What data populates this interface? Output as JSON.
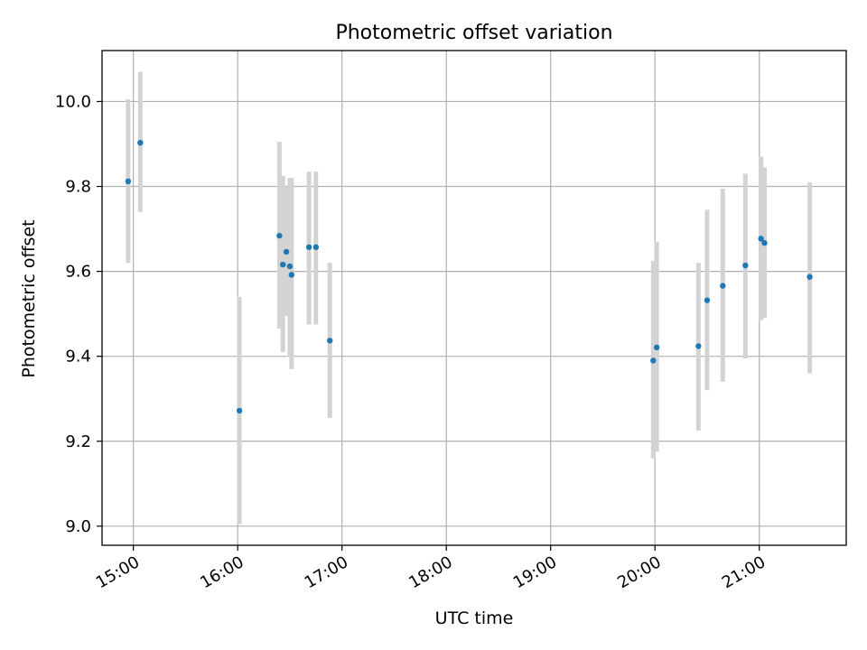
{
  "chart_data": {
    "type": "scatter",
    "title": "Photometric offset variation",
    "xlabel": "UTC time",
    "ylabel": "Photometric offset",
    "x_ticks": [
      "15:00",
      "16:00",
      "17:00",
      "18:00",
      "19:00",
      "20:00",
      "21:00"
    ],
    "y_ticks": [
      "9.0",
      "9.2",
      "9.4",
      "9.6",
      "9.8",
      "10.0"
    ],
    "xlim": [
      "14:42",
      "21:50"
    ],
    "ylim": [
      8.955,
      10.12
    ],
    "grid": true,
    "legend": "none",
    "colors": {
      "points": "#1f77b4",
      "error_bars": "#d3d3d3",
      "grid": "#b0b0b0"
    },
    "points": [
      {
        "time": "14:57",
        "offset": 9.812,
        "low": 9.62,
        "high": 10.005
      },
      {
        "time": "15:04",
        "offset": 9.903,
        "low": 9.74,
        "high": 10.07
      },
      {
        "time": "16:01",
        "offset": 9.272,
        "low": 9.005,
        "high": 9.54
      },
      {
        "time": "16:24",
        "offset": 9.684,
        "low": 9.465,
        "high": 9.905
      },
      {
        "time": "16:26",
        "offset": 9.616,
        "low": 9.41,
        "high": 9.825
      },
      {
        "time": "16:28",
        "offset": 9.646,
        "low": 9.495,
        "high": 9.8
      },
      {
        "time": "16:31",
        "offset": 9.592,
        "low": 9.37,
        "high": 9.82
      },
      {
        "time": "16:30",
        "offset": 9.612,
        "low": 9.4,
        "high": 9.82
      },
      {
        "time": "16:41",
        "offset": 9.657,
        "low": 9.475,
        "high": 9.835
      },
      {
        "time": "16:45",
        "offset": 9.657,
        "low": 9.475,
        "high": 9.835
      },
      {
        "time": "16:53",
        "offset": 9.437,
        "low": 9.255,
        "high": 9.62
      },
      {
        "time": "19:59",
        "offset": 9.39,
        "low": 9.16,
        "high": 9.625
      },
      {
        "time": "20:01",
        "offset": 9.421,
        "low": 9.175,
        "high": 9.67
      },
      {
        "time": "20:25",
        "offset": 9.424,
        "low": 9.225,
        "high": 9.62
      },
      {
        "time": "20:30",
        "offset": 9.532,
        "low": 9.32,
        "high": 9.745
      },
      {
        "time": "20:39",
        "offset": 9.566,
        "low": 9.34,
        "high": 9.795
      },
      {
        "time": "20:52",
        "offset": 9.614,
        "low": 9.395,
        "high": 9.83
      },
      {
        "time": "21:01",
        "offset": 9.677,
        "low": 9.485,
        "high": 9.87
      },
      {
        "time": "21:03",
        "offset": 9.667,
        "low": 9.49,
        "high": 9.845
      },
      {
        "time": "21:29",
        "offset": 9.587,
        "low": 9.36,
        "high": 9.81
      }
    ]
  }
}
